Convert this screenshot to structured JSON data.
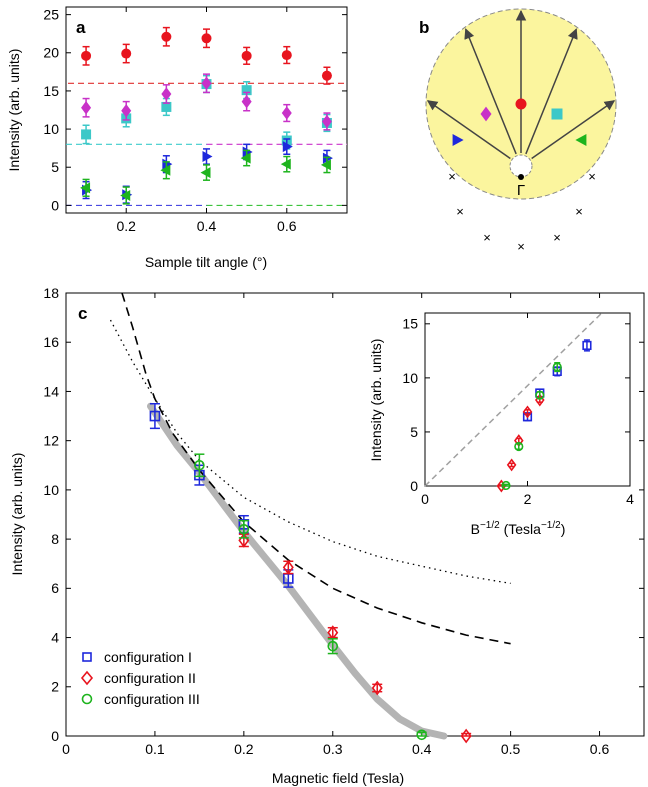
{
  "chart_data": [
    {
      "panel": "a",
      "type": "scatter",
      "panel_label": "a",
      "xlabel": "Sample tilt angle (°)",
      "ylabel": "Intensity (arb. units)",
      "xlim": [
        0.05,
        0.75
      ],
      "ylim": [
        -1,
        26
      ],
      "xticks": [
        0.2,
        0.4,
        0.6
      ],
      "xticklabels": [
        "0.2",
        "0.4",
        "0.6"
      ],
      "yticks": [
        0,
        5,
        10,
        15,
        20,
        25
      ],
      "yticklabels": [
        "0",
        "5",
        "10",
        "15",
        "20",
        "25"
      ],
      "grid": false,
      "reference_lines": [
        {
          "y": 16,
          "color": "#e03030"
        },
        {
          "y": 8,
          "color": "#3ccccc"
        },
        {
          "y": 8,
          "color": "#cc33cc"
        },
        {
          "y": 0,
          "color": "#3030dd"
        },
        {
          "y": 0,
          "color": "#22bb22"
        }
      ],
      "series": [
        {
          "marker": "circle",
          "color": "#e8141e",
          "x": [
            0.1,
            0.2,
            0.3,
            0.4,
            0.5,
            0.6,
            0.7
          ],
          "y": [
            19.6,
            19.9,
            22.1,
            21.9,
            19.6,
            19.7,
            17.0
          ],
          "err": [
            1.2,
            1.2,
            1.2,
            1.2,
            1.1,
            1.1,
            1.1
          ]
        },
        {
          "marker": "square",
          "color": "#3cc8c8",
          "x": [
            0.1,
            0.2,
            0.3,
            0.4,
            0.5,
            0.6,
            0.7
          ],
          "y": [
            9.3,
            11.4,
            12.9,
            15.9,
            15.1,
            8.5,
            10.8
          ],
          "err": [
            1.2,
            1.1,
            1.1,
            1.1,
            1.1,
            1.1,
            1.1
          ]
        },
        {
          "marker": "diamond",
          "color": "#c832c8",
          "x": [
            0.1,
            0.2,
            0.3,
            0.4,
            0.5,
            0.6,
            0.7
          ],
          "y": [
            12.8,
            12.4,
            14.6,
            16.0,
            13.6,
            12.1,
            11.0
          ],
          "err": [
            1.2,
            1.2,
            1.2,
            1.2,
            1.2,
            1.1,
            1.1
          ]
        },
        {
          "marker": "triangle-right",
          "color": "#1e28dc",
          "x": [
            0.1,
            0.2,
            0.3,
            0.4,
            0.5,
            0.6,
            0.7
          ],
          "y": [
            2.0,
            1.4,
            5.4,
            6.4,
            7.0,
            7.7,
            6.2
          ],
          "err": [
            1.1,
            1.1,
            1.1,
            1.0,
            1.0,
            1.0,
            1.0
          ]
        },
        {
          "marker": "triangle-left",
          "color": "#1eb41e",
          "x": [
            0.1,
            0.2,
            0.3,
            0.4,
            0.5,
            0.6,
            0.7
          ],
          "y": [
            2.3,
            1.3,
            4.6,
            4.3,
            6.2,
            5.4,
            5.3
          ],
          "err": [
            1.1,
            1.1,
            1.1,
            1.0,
            1.0,
            1.0,
            1.0
          ]
        }
      ]
    },
    {
      "panel": "b",
      "type": "diagram",
      "panel_label": "b",
      "center_label": "Γ",
      "markers": [
        {
          "shape": "circle",
          "color": "#e8141e"
        },
        {
          "shape": "square",
          "color": "#3cc8c8"
        },
        {
          "shape": "diamond",
          "color": "#c832c8"
        },
        {
          "shape": "triangle-right",
          "color": "#1e28dc"
        },
        {
          "shape": "triangle-left",
          "color": "#1eb41e"
        }
      ],
      "circle_fill": "#fbf59e"
    },
    {
      "panel": "c",
      "type": "scatter",
      "panel_label": "c",
      "xlabel": "Magnetic field (Tesla)",
      "ylabel": "Intensity (arb. units)",
      "xlim": [
        0,
        0.65
      ],
      "ylim": [
        0,
        18
      ],
      "xticks": [
        0,
        0.1,
        0.2,
        0.3,
        0.4,
        0.5,
        0.6
      ],
      "xticklabels": [
        "0",
        "0.1",
        "0.2",
        "0.3",
        "0.4",
        "0.5",
        "0.6"
      ],
      "yticks": [
        0,
        2,
        4,
        6,
        8,
        10,
        12,
        14,
        16,
        18
      ],
      "yticklabels": [
        "0",
        "2",
        "4",
        "6",
        "8",
        "10",
        "12",
        "14",
        "16",
        "18"
      ],
      "grid": false,
      "legend_position": "bottom-left",
      "series": [
        {
          "name": "configuration I",
          "marker": "square",
          "color": "#1e28dc",
          "x": [
            0.1,
            0.15,
            0.2,
            0.25
          ],
          "y": [
            13.0,
            10.6,
            8.6,
            6.4
          ],
          "err": [
            0.5,
            0.4,
            0.35,
            0.35
          ]
        },
        {
          "name": "configuration II",
          "marker": "diamond",
          "color": "#e8141e",
          "x": [
            0.2,
            0.25,
            0.3,
            0.35,
            0.45
          ],
          "y": [
            7.95,
            6.85,
            4.2,
            1.95,
            0.0
          ],
          "err": [
            0.25,
            0.25,
            0.2,
            0.15,
            0.1
          ]
        },
        {
          "name": "configuration III",
          "marker": "circle",
          "color": "#1eb41e",
          "x": [
            0.15,
            0.2,
            0.3,
            0.4
          ],
          "y": [
            11.0,
            8.4,
            3.65,
            0.05
          ],
          "err": [
            0.45,
            0.35,
            0.3,
            0.1
          ]
        }
      ],
      "fit_curve": {
        "color": "#b4b4b4",
        "x": [
          0.095,
          0.125,
          0.15,
          0.175,
          0.2,
          0.225,
          0.25,
          0.275,
          0.3,
          0.325,
          0.35,
          0.375,
          0.4,
          0.425
        ],
        "y": [
          13.4,
          11.8,
          10.7,
          9.5,
          8.3,
          7.2,
          6.1,
          4.9,
          3.7,
          2.55,
          1.5,
          0.7,
          0.2,
          0.0
        ]
      },
      "dashed_curve": {
        "x": [
          0.063,
          0.075,
          0.09,
          0.1,
          0.12,
          0.15,
          0.2,
          0.25,
          0.3,
          0.35,
          0.4,
          0.45,
          0.5
        ],
        "y": [
          18.0,
          16.6,
          14.7,
          13.7,
          12.3,
          10.8,
          8.7,
          7.15,
          6.0,
          5.2,
          4.6,
          4.1,
          3.75
        ]
      },
      "dotted_curve": {
        "x": [
          0.05,
          0.075,
          0.1,
          0.125,
          0.15,
          0.2,
          0.25,
          0.3,
          0.35,
          0.4,
          0.45,
          0.5
        ],
        "y": [
          16.9,
          15.2,
          13.7,
          12.3,
          11.2,
          9.7,
          8.7,
          7.9,
          7.3,
          6.9,
          6.5,
          6.2
        ]
      },
      "inset": {
        "xlabel": "B^{-1/2} (Tesla^{-1/2})",
        "xlabel_main": "B",
        "xlabel_sup": "−1/2",
        "xlabel_paren": " (Tesla",
        "xlabel_sup2": "−1/2",
        "xlabel_end": ")",
        "ylabel": "Intensity (arb. units)",
        "xlim": [
          0,
          4
        ],
        "ylim": [
          0,
          16
        ],
        "xticks": [
          0,
          2,
          4
        ],
        "xticklabels": [
          "0",
          "2",
          "4"
        ],
        "yticks": [
          0,
          5,
          10,
          15
        ],
        "yticklabels": [
          "0",
          "5",
          "10",
          "15"
        ],
        "reference_line": {
          "x": [
            0,
            3.45
          ],
          "y": [
            0,
            16
          ],
          "color": "#a0a0a0"
        },
        "series": [
          {
            "marker": "square",
            "color": "#1e28dc",
            "x": [
              3.16,
              2.58,
              2.24,
              2.0
            ],
            "y": [
              13.0,
              10.6,
              8.6,
              6.4
            ],
            "err": [
              0.5,
              0.4,
              0.35,
              0.35
            ]
          },
          {
            "marker": "diamond",
            "color": "#e8141e",
            "x": [
              2.24,
              2.0,
              1.83,
              1.69,
              1.49
            ],
            "y": [
              7.95,
              6.85,
              4.2,
              1.95,
              0.0
            ],
            "err": [
              0.2,
              0.2,
              0.2,
              0.15,
              0.1
            ]
          },
          {
            "marker": "circle",
            "color": "#1eb41e",
            "x": [
              2.58,
              2.24,
              1.83,
              1.58
            ],
            "y": [
              11.0,
              8.4,
              3.65,
              0.05
            ],
            "err": [
              0.4,
              0.3,
              0.25,
              0.1
            ]
          }
        ]
      }
    }
  ]
}
